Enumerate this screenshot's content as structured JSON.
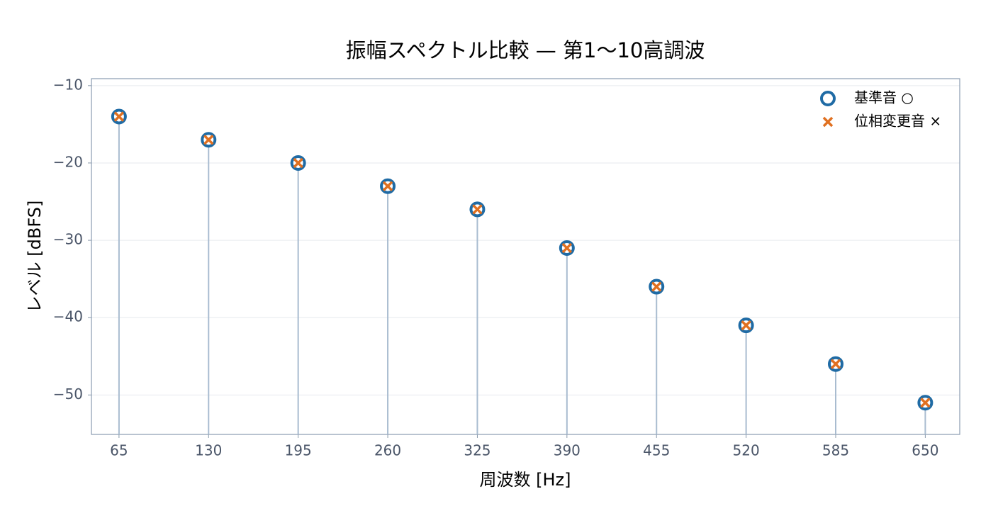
{
  "chart_data": {
    "type": "stem",
    "title": "振幅スペクトル比較 — 第1〜10高調波",
    "xlabel": "周波数 [Hz]",
    "ylabel": "レベル [dBFS]",
    "x": [
      65,
      130,
      195,
      260,
      325,
      390,
      455,
      520,
      585,
      650
    ],
    "series": [
      {
        "name": "基準音 ○",
        "color": "#1f6ba5",
        "marker": "circle",
        "values": [
          -14,
          -17,
          -20,
          -23,
          -26,
          -31,
          -36,
          -41,
          -46,
          -51
        ]
      },
      {
        "name": "位相変更音 ×",
        "color": "#e07020",
        "marker": "x",
        "values": [
          -14,
          -17,
          -20,
          -23,
          -26,
          -31,
          -36,
          -41,
          -46,
          -51
        ]
      }
    ],
    "stem_color": "#a9bcd0",
    "xlim": [
      45,
      675
    ],
    "ylim": [
      -55.1,
      -9.1
    ],
    "xticks": [
      65,
      130,
      195,
      260,
      325,
      390,
      455,
      520,
      585,
      650
    ],
    "yticks": [
      {
        "value": -10,
        "label": "−10"
      },
      {
        "value": -20,
        "label": "−20"
      },
      {
        "value": -30,
        "label": "−30"
      },
      {
        "value": -40,
        "label": "−40"
      },
      {
        "value": -50,
        "label": "−50"
      }
    ],
    "grid": true,
    "legend": "upper right"
  }
}
